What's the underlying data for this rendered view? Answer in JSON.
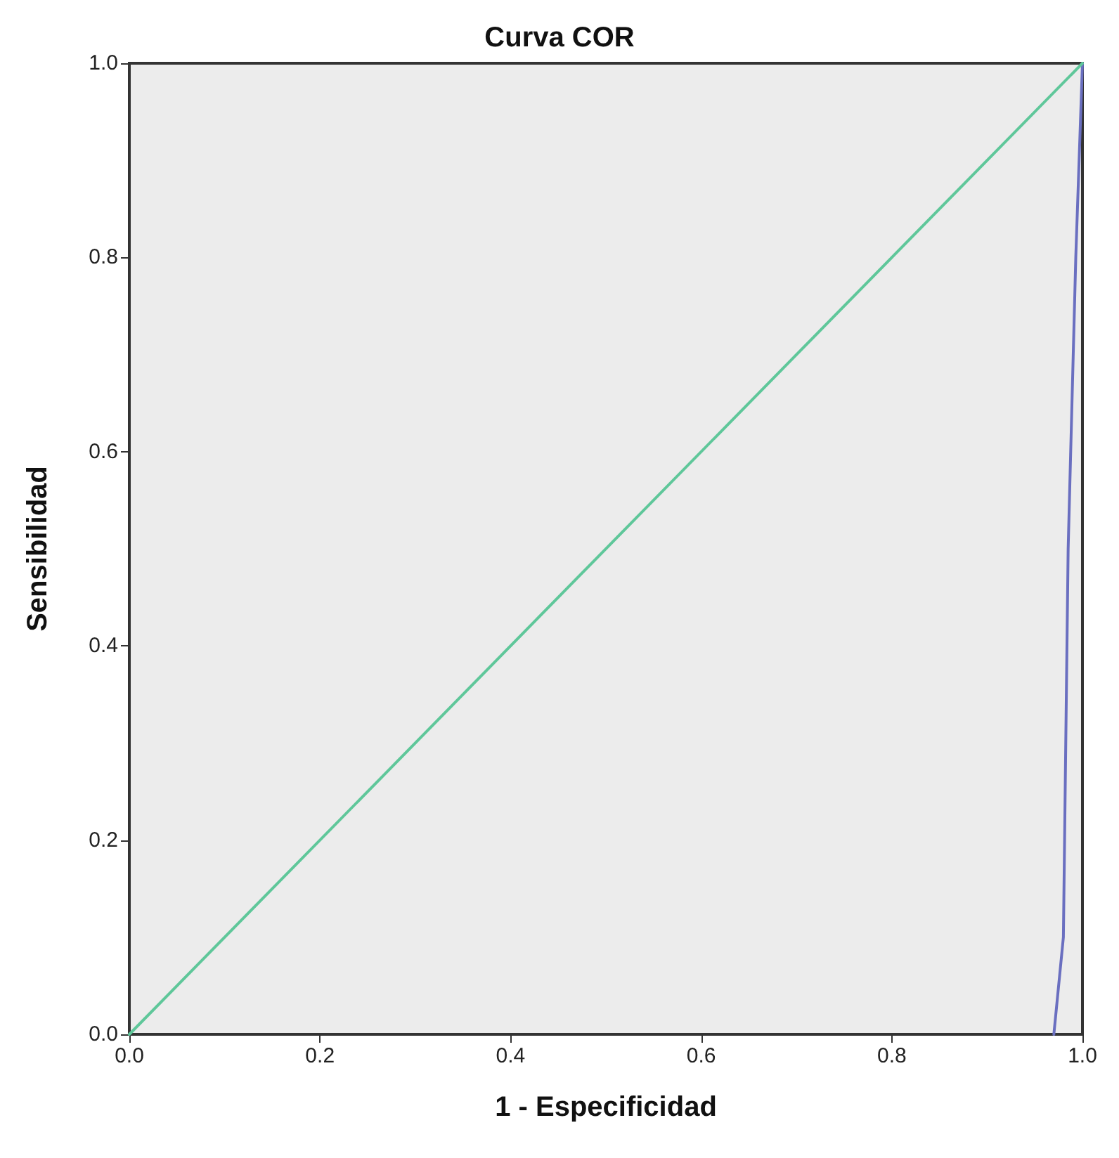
{
  "chart_data": {
    "type": "line",
    "title": "Curva COR",
    "xlabel": "1 - Especificidad",
    "ylabel": "Sensibilidad",
    "xlim": [
      0,
      1
    ],
    "ylim": [
      0,
      1
    ],
    "xticks": [
      {
        "value": 0,
        "label": "0.0"
      },
      0.2,
      0.4,
      0.6,
      0.8,
      {
        "value": 1,
        "label": "1.0"
      }
    ],
    "yticks": [
      {
        "value": 0,
        "label": "0.0"
      },
      0.2,
      0.4,
      0.6,
      0.8,
      {
        "value": 1,
        "label": "1.0"
      }
    ],
    "grid": false,
    "marker": "none",
    "line_style": "solid",
    "series": [
      {
        "color": "#6a6fc0",
        "x": [
          0.97,
          0.98,
          0.985,
          0.993,
          1
        ],
        "values": [
          0,
          0.1,
          0.5,
          0.8,
          1
        ]
      },
      {
        "color": "#5fc79a",
        "x": [
          0,
          1
        ],
        "values": [
          0,
          1
        ]
      }
    ]
  }
}
